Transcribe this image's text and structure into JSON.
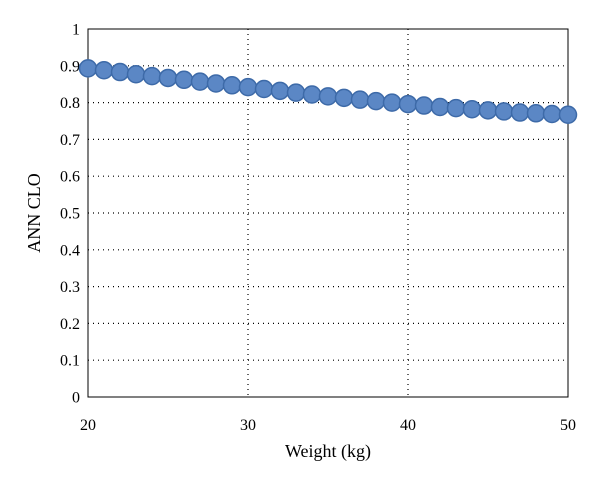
{
  "chart_data": {
    "type": "scatter",
    "xlabel": "Weight (kg)",
    "ylabel": "ANN CLO",
    "xlim": [
      20,
      50
    ],
    "ylim": [
      0,
      1
    ],
    "xticks": [
      20,
      30,
      40,
      50
    ],
    "yticks": [
      0,
      0.1,
      0.2,
      0.3,
      0.4,
      0.5,
      0.6,
      0.7,
      0.8,
      0.9,
      1
    ],
    "grid": true,
    "legend": "none",
    "marker_color": "#5b87c5",
    "series": [
      {
        "x": [
          20,
          21,
          22,
          23,
          24,
          25,
          26,
          27,
          28,
          29,
          30,
          31,
          32,
          33,
          34,
          35,
          36,
          37,
          38,
          39,
          40,
          41,
          42,
          43,
          44,
          45,
          46,
          47,
          48,
          49,
          50
        ],
        "y": [
          0.893,
          0.888,
          0.883,
          0.877,
          0.872,
          0.867,
          0.862,
          0.857,
          0.852,
          0.847,
          0.842,
          0.837,
          0.832,
          0.827,
          0.822,
          0.817,
          0.813,
          0.808,
          0.804,
          0.8,
          0.796,
          0.792,
          0.788,
          0.785,
          0.782,
          0.779,
          0.776,
          0.773,
          0.771,
          0.769,
          0.767
        ]
      }
    ]
  }
}
